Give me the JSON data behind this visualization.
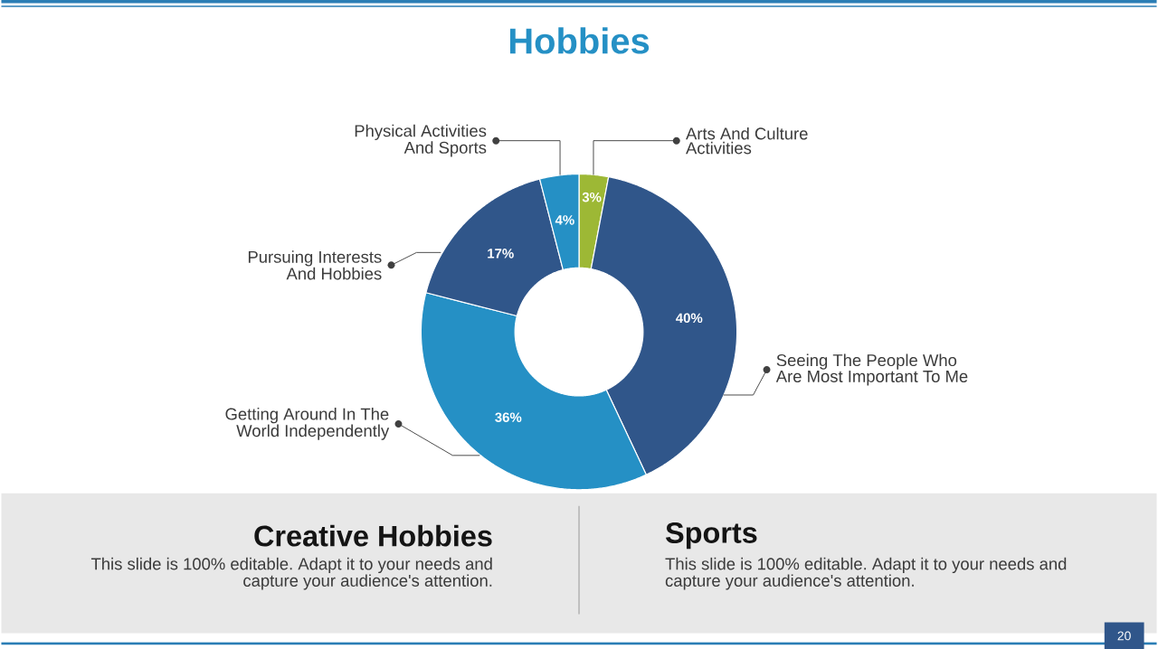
{
  "chart_data": {
    "type": "donut",
    "title": "Hobbies",
    "categories": [
      "Arts And Culture Activities",
      "Seeing The People Who Are Most Important To Me",
      "Getting Around In The World Independently",
      "Pursuing Interests And Hobbies",
      "Physical Activities And Sports"
    ],
    "values": [
      3,
      40,
      36,
      17,
      4
    ],
    "colors": [
      "#9db835",
      "#30568a",
      "#2590c5",
      "#30568a",
      "#2590c5"
    ],
    "value_labels": [
      "3%",
      "40%",
      "36%",
      "17%",
      "4%"
    ],
    "annotations": [
      "Creative Hobbies",
      "This slide is 100% editable. Adapt it to your needs and capture your audience's attention.",
      "Sports",
      "This slide is 100% editable. Adapt it to your needs and capture your audience's attention.",
      "20"
    ]
  }
}
